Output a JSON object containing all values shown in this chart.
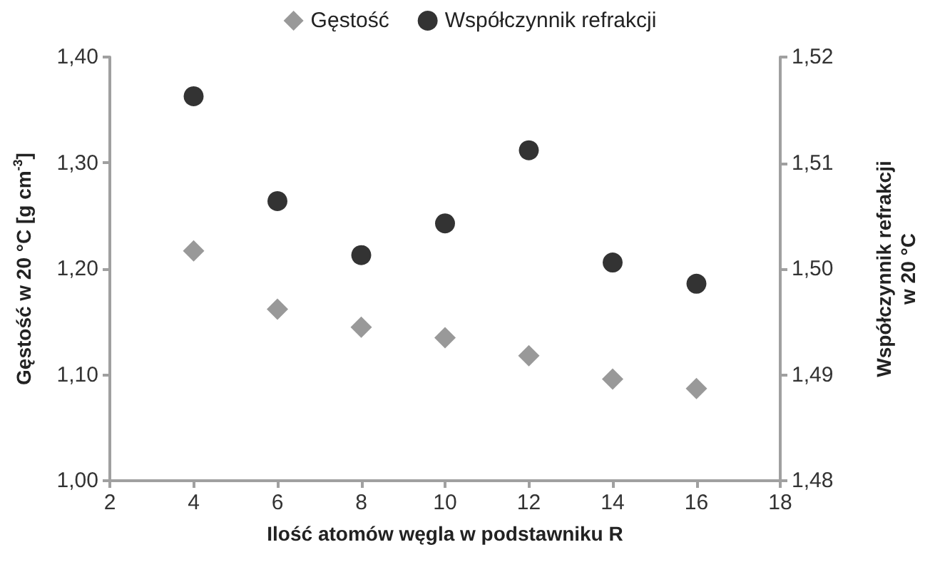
{
  "chart_data": {
    "type": "scatter",
    "xlabel": "Ilość atomów węgla w podstawniku R",
    "ylabel": "Gęstość w 20 °C [g cm$^{-3}$]",
    "y2label": "Współczynnik refrakcji\nw 20 °C",
    "x": [
      4,
      6,
      8,
      10,
      12,
      14,
      16
    ],
    "series": [
      {
        "name": "Gęstość",
        "color": "#7f7f7f",
        "marker": "diamond",
        "values": [
          1.217,
          1.162,
          1.145,
          1.135,
          1.118,
          1.096,
          1.087
        ]
      },
      {
        "name": "Współczynnik refrakcji",
        "color": "#000000",
        "marker": "circle",
        "axis": "y2",
        "values": [
          1.5163,
          1.5064,
          1.5013,
          1.5043,
          1.5112,
          1.5006,
          1.4986
        ]
      }
    ],
    "xlim": [
      2,
      18
    ],
    "xticks": [
      2,
      4,
      6,
      8,
      10,
      12,
      14,
      16,
      18
    ],
    "ylim": [
      1.0,
      1.4
    ],
    "yticks": [
      {
        "value": 1.0,
        "label": "1,00"
      },
      {
        "value": 1.1,
        "label": "1,10"
      },
      {
        "value": 1.2,
        "label": "1,20"
      },
      {
        "value": 1.3,
        "label": "1,30"
      },
      {
        "value": 1.4,
        "label": "1,40"
      }
    ],
    "y2lim": [
      1.48,
      1.52
    ],
    "y2ticks": [
      {
        "value": 1.48,
        "label": "1,48"
      },
      {
        "value": 1.49,
        "label": "1,49"
      },
      {
        "value": 1.5,
        "label": "1,50"
      },
      {
        "value": 1.51,
        "label": "1,51"
      },
      {
        "value": 1.52,
        "label": "1,52"
      }
    ],
    "grid": false,
    "legend": "top"
  }
}
